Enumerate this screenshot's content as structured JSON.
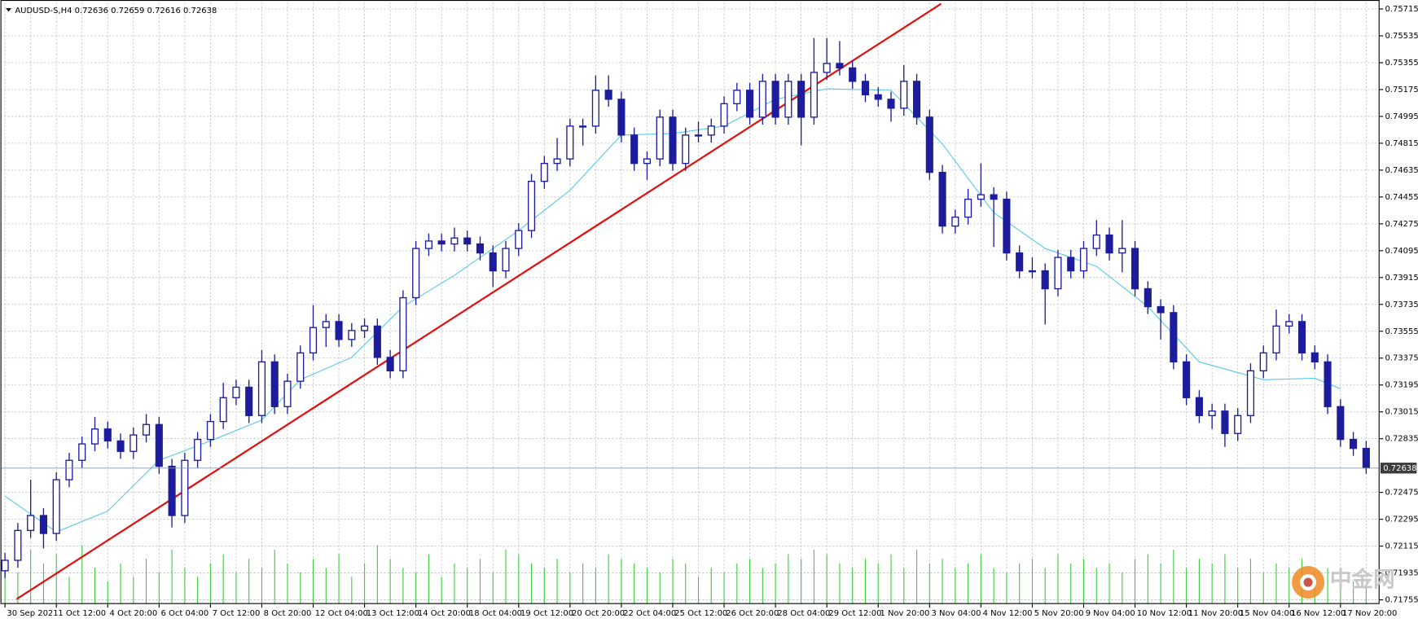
{
  "chart_data": {
    "type": "candlestick",
    "title": "AUDUSD-S,H4  0.72636 0.72659 0.72616 0.72638",
    "watermark": "中金网",
    "open": [
      0.7195,
      0.7202,
      0.7222,
      0.7232,
      0.722,
      0.7256,
      0.7269,
      0.728,
      0.729,
      0.7282,
      0.7275,
      0.7286,
      0.7293,
      0.7265,
      0.7232,
      0.7269,
      0.7283,
      0.7295,
      0.7311,
      0.7318,
      0.7299,
      0.7335,
      0.7305,
      0.7322,
      0.7341,
      0.7358,
      0.7362,
      0.735,
      0.7356,
      0.7359,
      0.7338,
      0.7329,
      0.7378,
      0.7411,
      0.7416,
      0.7414,
      0.7418,
      0.7414,
      0.7408,
      0.7396,
      0.7411,
      0.7423,
      0.7456,
      0.7468,
      0.7471,
      0.7493,
      0.7493,
      0.7517,
      0.7511,
      0.7487,
      0.7468,
      0.7471,
      0.7499,
      0.7468,
      0.7487,
      0.7487,
      0.7493,
      0.7508,
      0.7517,
      0.7499,
      0.7523,
      0.7499,
      0.7523,
      0.7499,
      0.7529,
      0.7535,
      0.7532,
      0.7523,
      0.7514,
      0.7511,
      0.7505,
      0.7523,
      0.7499,
      0.7462,
      0.7426,
      0.7432,
      0.7444,
      0.7447,
      0.7444,
      0.7408,
      0.7396,
      0.7396,
      0.7384,
      0.7405,
      0.7396,
      0.7411,
      0.742,
      0.7408,
      0.7411,
      0.7384,
      0.7372,
      0.7368,
      0.7335,
      0.7311,
      0.7299,
      0.7302,
      0.7287,
      0.7299,
      0.7329,
      0.7341,
      0.7359,
      0.7362,
      0.7341,
      0.7335,
      0.7305,
      0.7283,
      0.7277
    ],
    "high": [
      0.7207,
      0.7227,
      0.7256,
      0.7237,
      0.7261,
      0.7274,
      0.7285,
      0.7298,
      0.7295,
      0.7287,
      0.7291,
      0.73,
      0.7298,
      0.727,
      0.7274,
      0.7288,
      0.73,
      0.7321,
      0.7323,
      0.7323,
      0.7343,
      0.734,
      0.7327,
      0.7346,
      0.7373,
      0.7367,
      0.7367,
      0.7361,
      0.7364,
      0.7364,
      0.7343,
      0.7383,
      0.7416,
      0.7421,
      0.7421,
      0.7425,
      0.7423,
      0.7419,
      0.7413,
      0.7416,
      0.7428,
      0.7461,
      0.7473,
      0.7485,
      0.7498,
      0.7498,
      0.7527,
      0.7527,
      0.7516,
      0.7492,
      0.7476,
      0.7504,
      0.7504,
      0.7492,
      0.7496,
      0.7498,
      0.7513,
      0.7522,
      0.7522,
      0.7528,
      0.7528,
      0.7528,
      0.7528,
      0.7552,
      0.7552,
      0.755,
      0.7537,
      0.7528,
      0.7519,
      0.7516,
      0.7534,
      0.7528,
      0.7504,
      0.7467,
      0.7437,
      0.7451,
      0.7468,
      0.7452,
      0.7449,
      0.7413,
      0.7405,
      0.7401,
      0.741,
      0.741,
      0.7416,
      0.743,
      0.7425,
      0.743,
      0.7416,
      0.7389,
      0.7377,
      0.7373,
      0.734,
      0.7316,
      0.7307,
      0.7307,
      0.7304,
      0.7334,
      0.7346,
      0.737,
      0.7367,
      0.7367,
      0.7346,
      0.734,
      0.731,
      0.7288,
      0.7282
    ],
    "low": [
      0.719,
      0.7197,
      0.7217,
      0.721,
      0.7215,
      0.7251,
      0.7264,
      0.7275,
      0.7277,
      0.727,
      0.727,
      0.7281,
      0.726,
      0.7224,
      0.7227,
      0.7264,
      0.7278,
      0.729,
      0.7306,
      0.7294,
      0.7294,
      0.73,
      0.73,
      0.7317,
      0.7336,
      0.7345,
      0.7345,
      0.7345,
      0.7351,
      0.7333,
      0.7324,
      0.7324,
      0.7373,
      0.7406,
      0.7409,
      0.7409,
      0.7409,
      0.7403,
      0.7385,
      0.7391,
      0.7406,
      0.7418,
      0.7451,
      0.7463,
      0.7466,
      0.748,
      0.7488,
      0.7506,
      0.7482,
      0.7463,
      0.7457,
      0.7466,
      0.7463,
      0.7463,
      0.7482,
      0.7482,
      0.7488,
      0.7503,
      0.7494,
      0.7494,
      0.7494,
      0.7494,
      0.748,
      0.7494,
      0.7524,
      0.7527,
      0.7518,
      0.7509,
      0.7506,
      0.7496,
      0.75,
      0.7494,
      0.7457,
      0.7421,
      0.7421,
      0.7427,
      0.7439,
      0.7412,
      0.7403,
      0.7391,
      0.7391,
      0.736,
      0.7379,
      0.7391,
      0.7391,
      0.7406,
      0.7403,
      0.7395,
      0.7379,
      0.7367,
      0.735,
      0.733,
      0.7306,
      0.7294,
      0.729,
      0.7278,
      0.7282,
      0.7294,
      0.7324,
      0.7336,
      0.7354,
      0.7336,
      0.733,
      0.73,
      0.7278,
      0.7272,
      0.726
    ],
    "close": [
      0.7202,
      0.7222,
      0.7232,
      0.722,
      0.7256,
      0.7269,
      0.728,
      0.729,
      0.7282,
      0.7275,
      0.7286,
      0.7293,
      0.7265,
      0.7232,
      0.7269,
      0.7283,
      0.7295,
      0.7311,
      0.7318,
      0.7299,
      0.7335,
      0.7305,
      0.7322,
      0.7341,
      0.7358,
      0.7362,
      0.735,
      0.7356,
      0.7359,
      0.7338,
      0.7329,
      0.7378,
      0.7411,
      0.7416,
      0.7414,
      0.7418,
      0.7414,
      0.7408,
      0.7396,
      0.7411,
      0.7423,
      0.7456,
      0.7468,
      0.7471,
      0.7493,
      0.7493,
      0.7517,
      0.7511,
      0.7487,
      0.7468,
      0.7471,
      0.7499,
      0.7468,
      0.7487,
      0.7487,
      0.7493,
      0.7508,
      0.7517,
      0.7499,
      0.7523,
      0.7499,
      0.7523,
      0.7499,
      0.7529,
      0.7535,
      0.7532,
      0.7523,
      0.7514,
      0.7511,
      0.7505,
      0.7523,
      0.7499,
      0.7462,
      0.7426,
      0.7432,
      0.7444,
      0.7447,
      0.7444,
      0.7408,
      0.7396,
      0.7396,
      0.7384,
      0.7405,
      0.7396,
      0.7411,
      0.742,
      0.7408,
      0.7411,
      0.7384,
      0.7372,
      0.7368,
      0.7335,
      0.7311,
      0.7299,
      0.7302,
      0.7287,
      0.7299,
      0.7329,
      0.7341,
      0.7359,
      0.7362,
      0.7341,
      0.7335,
      0.7305,
      0.7283,
      0.7277,
      0.7264
    ],
    "volume": [
      40,
      35,
      60,
      45,
      55,
      30,
      65,
      40,
      25,
      45,
      30,
      50,
      35,
      60,
      40,
      30,
      45,
      55,
      35,
      50,
      40,
      60,
      45,
      35,
      50,
      40,
      55,
      30,
      45,
      65,
      50,
      40,
      35,
      55,
      30,
      45,
      40,
      50,
      35,
      60,
      55,
      45,
      40,
      50,
      35,
      45,
      40,
      55,
      50,
      45,
      40,
      35,
      50,
      45,
      30,
      40,
      35,
      45,
      50,
      40,
      45,
      55,
      50,
      60,
      55,
      45,
      40,
      50,
      45,
      55,
      40,
      60,
      45,
      50,
      40,
      45,
      55,
      40,
      35,
      45,
      50,
      40,
      55,
      45,
      50,
      40,
      45,
      35,
      50,
      55,
      45,
      60,
      40,
      50,
      45,
      55,
      40,
      50,
      35,
      45,
      40,
      50,
      35,
      40,
      30,
      25,
      20
    ],
    "candle_color": "#1c1c9c",
    "volume_color": "#3ccc3c",
    "ma": {
      "color": "#5ac8e8",
      "x": [
        0,
        4,
        8,
        12,
        16,
        20,
        23,
        27,
        31,
        35,
        40,
        44,
        48,
        52,
        56,
        60,
        64,
        69,
        73,
        77,
        81,
        85,
        89,
        93,
        98,
        102,
        104
      ],
      "values": [
        0.7245,
        0.7221,
        0.7235,
        0.7269,
        0.7282,
        0.7296,
        0.7323,
        0.7338,
        0.7372,
        0.7393,
        0.7423,
        0.745,
        0.7487,
        0.7488,
        0.7493,
        0.7511,
        0.7518,
        0.7517,
        0.7481,
        0.7435,
        0.7411,
        0.7399,
        0.7372,
        0.7335,
        0.7323,
        0.7324,
        0.7317
      ]
    },
    "trendline": {
      "color": "#e01010",
      "x": [
        0.9,
        72.9
      ],
      "y": [
        0.7176,
        0.7575
      ]
    },
    "current_price": 0.72638,
    "ylim": [
      0.71727,
      0.75757
    ],
    "yticks": [
      0.75715,
      0.75535,
      0.75355,
      0.75175,
      0.74995,
      0.74815,
      0.74635,
      0.74455,
      0.74275,
      0.74095,
      0.73915,
      0.73735,
      0.73555,
      0.73375,
      0.73195,
      0.73015,
      0.72835,
      0.72475,
      0.72295,
      0.72115,
      0.71935,
      0.71755
    ],
    "xticks": [
      {
        "value": 0,
        "label": "30 Sep 2021"
      },
      {
        "value": 4,
        "label": "1 Oct 12:00"
      },
      {
        "value": 8,
        "label": "4 Oct 20:00"
      },
      {
        "value": 12,
        "label": "6 Oct 04:00"
      },
      {
        "value": 16,
        "label": "7 Oct 12:00"
      },
      {
        "value": 20,
        "label": "8 Oct 20:00"
      },
      {
        "value": 24,
        "label": "12 Oct 04:00"
      },
      {
        "value": 28,
        "label": "13 Oct 12:00"
      },
      {
        "value": 32,
        "label": "14 Oct 20:00"
      },
      {
        "value": 36,
        "label": "18 Oct 04:00"
      },
      {
        "value": 40,
        "label": "19 Oct 12:00"
      },
      {
        "value": 44,
        "label": "20 Oct 20:00"
      },
      {
        "value": 48,
        "label": "22 Oct 04:00"
      },
      {
        "value": 52,
        "label": "25 Oct 12:00"
      },
      {
        "value": 56,
        "label": "26 Oct 20:00"
      },
      {
        "value": 60,
        "label": "28 Oct 04:00"
      },
      {
        "value": 64,
        "label": "29 Oct 12:00"
      },
      {
        "value": 68,
        "label": "1 Nov 20:00"
      },
      {
        "value": 72,
        "label": "3 Nov 04:00"
      },
      {
        "value": 76,
        "label": "4 Nov 12:00"
      },
      {
        "value": 80,
        "label": "5 Nov 20:00"
      },
      {
        "value": 84,
        "label": "9 Nov 04:00"
      },
      {
        "value": 88,
        "label": "10 Nov 12:00"
      },
      {
        "value": 92,
        "label": "11 Nov 20:00"
      },
      {
        "value": 96,
        "label": "15 Nov 04:00"
      },
      {
        "value": 100,
        "label": "16 Nov 12:00"
      },
      {
        "value": 104,
        "label": "17 Nov 20:00"
      }
    ],
    "grid": true
  }
}
